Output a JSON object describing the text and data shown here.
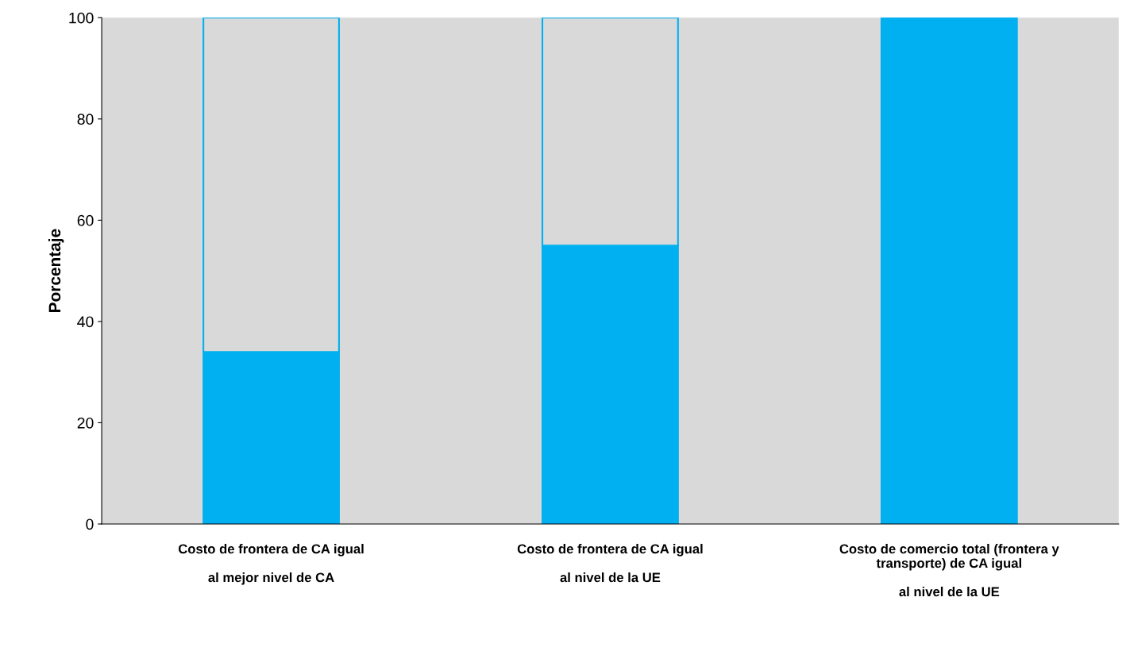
{
  "chart_data": {
    "type": "bar",
    "stacked": true,
    "ylabel": "Porcentaje",
    "categories": [
      "Costo de frontera de CA igual\n\nal mejor nivel de CA",
      "Costo de frontera de CA igual\n\nal nivel de la UE",
      "Costo de comercio total (frontera y\ntransporte) de CA igual\n\nal nivel de la UE"
    ],
    "series": [
      {
        "color": "#00b0f0",
        "values": [
          34,
          55,
          100
        ]
      },
      {
        "color": "#d9d9d9",
        "values": [
          66,
          45,
          0
        ]
      }
    ],
    "ylim": [
      0,
      100
    ],
    "yticks": [
      0,
      20,
      40,
      60,
      80,
      100
    ],
    "grid": false,
    "legend": false
  }
}
